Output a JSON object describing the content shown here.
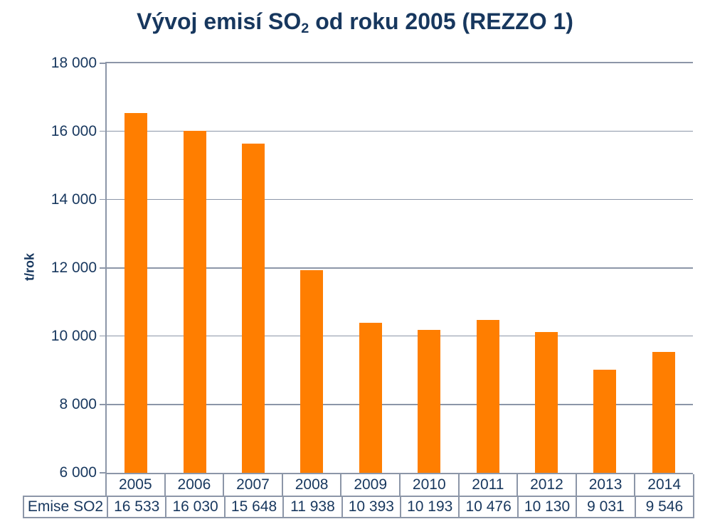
{
  "title": {
    "prefix": "Vývoj emisí SO",
    "subscript": "2",
    "suffix": " od roku 2005 (REZZO 1)",
    "full": "Vývoj emisí SO2 od roku 2005 (REZZO 1)"
  },
  "colors": {
    "bar": "#FF7E00",
    "text": "#17375E",
    "grid": "#8C96A8",
    "background": "#FFFFFF"
  },
  "chart_data": {
    "type": "bar",
    "title": "Vývoj emisí SO2 od roku 2005 (REZZO 1)",
    "ylabel": "t/rok",
    "xlabel": "",
    "ylim": [
      6000,
      18000
    ],
    "ytick_interval": 2000,
    "grid": true,
    "legend_position": "none",
    "data_table_below_axis": true,
    "series_label": "Emise SO2",
    "categories": [
      "2005",
      "2006",
      "2007",
      "2008",
      "2009",
      "2010",
      "2011",
      "2012",
      "2013",
      "2014"
    ],
    "series": [
      {
        "name": "Emise SO2",
        "values": [
          16533,
          16030,
          15648,
          11938,
          10393,
          10193,
          10476,
          10130,
          9031,
          9546
        ],
        "value_labels": [
          "16 533",
          "16 030",
          "15 648",
          "11 938",
          "10 393",
          "10 193",
          "10 476",
          "10 130",
          "9 031",
          "9 546"
        ]
      }
    ],
    "yticks": [
      {
        "value": 18000,
        "label": "18 000"
      },
      {
        "value": 16000,
        "label": "16 000"
      },
      {
        "value": 14000,
        "label": "14 000"
      },
      {
        "value": 12000,
        "label": "12 000"
      },
      {
        "value": 10000,
        "label": "10 000"
      },
      {
        "value": 8000,
        "label": "8 000"
      },
      {
        "value": 6000,
        "label": "6 000"
      }
    ]
  }
}
